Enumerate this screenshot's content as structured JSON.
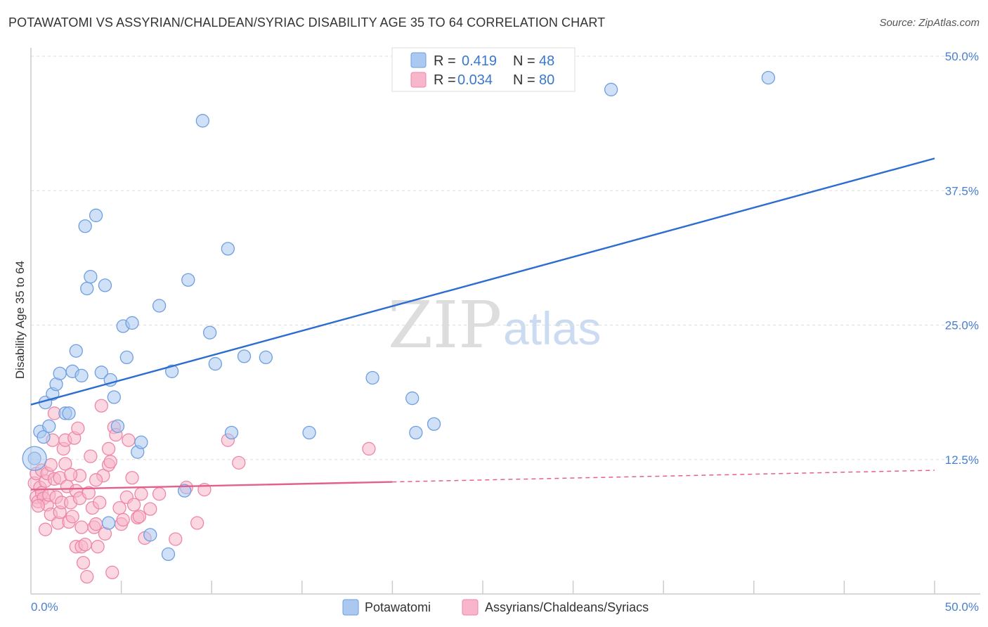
{
  "title": "POTAWATOMI VS ASSYRIAN/CHALDEAN/SYRIAC DISABILITY AGE 35 TO 64 CORRELATION CHART",
  "source": "Source: ZipAtlas.com",
  "watermark": {
    "zip": "ZIP",
    "atlas": "atlas"
  },
  "colors": {
    "blue_fill": "#aac8f0",
    "blue_stroke": "#6e9fe0",
    "blue_line": "#2b6ecf",
    "pink_fill": "#f7b6cb",
    "pink_stroke": "#ee86a8",
    "pink_line": "#e4608c",
    "grid": "#dddddd",
    "axis_text": "#4a7fd0"
  },
  "legend": {
    "r_label": "R =",
    "n_label": "N =",
    "rows": [
      {
        "r": "0.419",
        "n": "48"
      },
      {
        "r": "0.034",
        "n": "80"
      }
    ]
  },
  "chart_data": {
    "type": "scatter",
    "title": "POTAWATOMI VS ASSYRIAN/CHALDEAN/SYRIAC DISABILITY AGE 35 TO 64 CORRELATION CHART",
    "xlabel": "",
    "ylabel": "Disability Age 35 to 64",
    "xlim": [
      0,
      50
    ],
    "ylim": [
      0,
      50
    ],
    "x_tick_labels": [
      {
        "value": 0,
        "label": "0.0%"
      },
      {
        "value": 50,
        "label": "50.0%"
      }
    ],
    "y_tick_labels": [
      {
        "value": 12.5,
        "label": "12.5%"
      },
      {
        "value": 25.0,
        "label": "25.0%"
      },
      {
        "value": 37.5,
        "label": "37.5%"
      },
      {
        "value": 50.0,
        "label": "50.0%"
      }
    ],
    "x_minor_ticks": [
      5,
      10,
      15,
      20,
      25,
      30,
      35,
      40,
      45,
      50
    ],
    "series": [
      {
        "name": "Potawatomi",
        "color": "blue",
        "r": 0.419,
        "n": 48,
        "trend": {
          "x0": 0,
          "y0": 17.6,
          "x1": 50,
          "y1": 40.5,
          "dashed_from": null
        },
        "points": [
          [
            0.2,
            12.6
          ],
          [
            0.5,
            15.1
          ],
          [
            0.7,
            14.6
          ],
          [
            0.8,
            17.8
          ],
          [
            1.0,
            15.6
          ],
          [
            1.2,
            18.6
          ],
          [
            1.4,
            19.5
          ],
          [
            1.6,
            20.5
          ],
          [
            1.9,
            16.8
          ],
          [
            2.1,
            16.8
          ],
          [
            2.3,
            20.7
          ],
          [
            2.5,
            22.6
          ],
          [
            2.8,
            20.3
          ],
          [
            3.0,
            34.2
          ],
          [
            3.1,
            28.4
          ],
          [
            3.3,
            29.5
          ],
          [
            3.6,
            35.2
          ],
          [
            3.9,
            20.6
          ],
          [
            4.1,
            28.7
          ],
          [
            4.4,
            19.9
          ],
          [
            4.6,
            18.3
          ],
          [
            4.8,
            15.6
          ],
          [
            5.1,
            24.9
          ],
          [
            5.3,
            22.0
          ],
          [
            5.6,
            25.2
          ],
          [
            5.9,
            13.2
          ],
          [
            6.1,
            14.1
          ],
          [
            6.6,
            5.5
          ],
          [
            7.1,
            26.8
          ],
          [
            7.8,
            20.7
          ],
          [
            8.5,
            9.6
          ],
          [
            8.7,
            29.2
          ],
          [
            9.5,
            44.0
          ],
          [
            9.9,
            24.3
          ],
          [
            10.2,
            21.4
          ],
          [
            10.9,
            32.1
          ],
          [
            11.1,
            15.0
          ],
          [
            11.8,
            22.1
          ],
          [
            13.0,
            22.0
          ],
          [
            15.4,
            15.0
          ],
          [
            18.9,
            20.1
          ],
          [
            21.1,
            18.2
          ],
          [
            21.3,
            15.0
          ],
          [
            22.3,
            15.8
          ],
          [
            32.1,
            46.9
          ],
          [
            40.8,
            48.0
          ],
          [
            4.3,
            6.6
          ],
          [
            7.6,
            3.7
          ]
        ]
      },
      {
        "name": "Assyrians/Chaldeans/Syriacs",
        "color": "pink",
        "r": 0.034,
        "n": 80,
        "trend": {
          "x0": 0,
          "y0": 9.7,
          "x1": 50,
          "y1": 11.5,
          "dashed_from": 20
        },
        "points": [
          [
            0.2,
            10.3
          ],
          [
            0.3,
            11.2
          ],
          [
            0.3,
            9.0
          ],
          [
            0.4,
            8.6
          ],
          [
            0.5,
            9.9
          ],
          [
            0.6,
            11.5
          ],
          [
            0.6,
            9.4
          ],
          [
            0.7,
            8.9
          ],
          [
            0.8,
            10.5
          ],
          [
            0.9,
            8.3
          ],
          [
            0.9,
            11.2
          ],
          [
            1.0,
            9.2
          ],
          [
            1.1,
            7.4
          ],
          [
            1.1,
            12.0
          ],
          [
            1.2,
            14.3
          ],
          [
            1.3,
            10.7
          ],
          [
            1.3,
            16.8
          ],
          [
            1.4,
            9.0
          ],
          [
            1.5,
            6.6
          ],
          [
            1.6,
            7.6
          ],
          [
            1.6,
            10.8
          ],
          [
            1.7,
            8.5
          ],
          [
            1.8,
            13.5
          ],
          [
            1.9,
            12.1
          ],
          [
            1.9,
            14.3
          ],
          [
            2.0,
            10.0
          ],
          [
            2.1,
            6.7
          ],
          [
            2.2,
            8.5
          ],
          [
            2.3,
            7.2
          ],
          [
            2.4,
            14.5
          ],
          [
            2.5,
            4.4
          ],
          [
            2.5,
            9.6
          ],
          [
            2.6,
            15.4
          ],
          [
            2.7,
            11.0
          ],
          [
            2.7,
            8.9
          ],
          [
            2.8,
            4.4
          ],
          [
            2.8,
            6.2
          ],
          [
            2.9,
            2.9
          ],
          [
            3.0,
            4.6
          ],
          [
            3.1,
            1.6
          ],
          [
            3.2,
            9.4
          ],
          [
            3.3,
            12.8
          ],
          [
            3.4,
            8.0
          ],
          [
            3.5,
            6.2
          ],
          [
            3.6,
            6.5
          ],
          [
            3.7,
            4.4
          ],
          [
            3.8,
            8.5
          ],
          [
            3.9,
            17.5
          ],
          [
            4.0,
            11.0
          ],
          [
            4.1,
            5.6
          ],
          [
            4.3,
            13.5
          ],
          [
            4.3,
            12.0
          ],
          [
            4.4,
            12.3
          ],
          [
            4.5,
            2.0
          ],
          [
            4.6,
            15.5
          ],
          [
            4.7,
            14.8
          ],
          [
            4.9,
            8.0
          ],
          [
            5.0,
            6.5
          ],
          [
            5.1,
            6.9
          ],
          [
            5.3,
            9.0
          ],
          [
            5.4,
            14.3
          ],
          [
            5.6,
            10.8
          ],
          [
            5.7,
            8.3
          ],
          [
            5.9,
            7.1
          ],
          [
            6.0,
            7.2
          ],
          [
            6.1,
            9.3
          ],
          [
            6.3,
            5.2
          ],
          [
            6.6,
            7.9
          ],
          [
            7.1,
            9.3
          ],
          [
            8.0,
            5.1
          ],
          [
            8.6,
            9.9
          ],
          [
            9.2,
            6.6
          ],
          [
            9.6,
            9.7
          ],
          [
            10.9,
            14.3
          ],
          [
            11.5,
            12.2
          ],
          [
            18.7,
            13.5
          ],
          [
            0.4,
            8.2
          ],
          [
            0.8,
            6.0
          ],
          [
            2.2,
            11.1
          ],
          [
            3.6,
            10.6
          ]
        ]
      }
    ]
  },
  "bottom_legend": [
    {
      "label": "Potawatomi"
    },
    {
      "label": "Assyrians/Chaldeans/Syriacs"
    }
  ]
}
